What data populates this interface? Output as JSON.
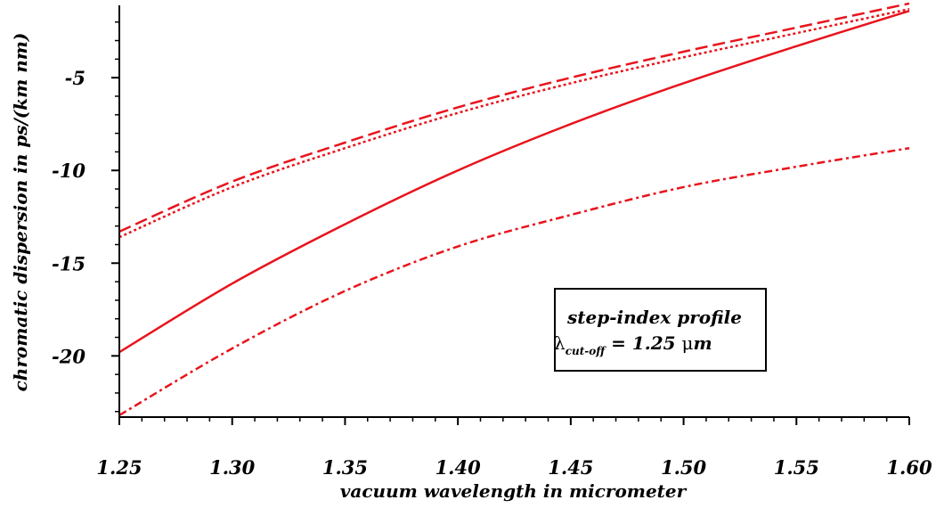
{
  "chart_data": {
    "type": "line",
    "xlabel": "vacuum wavelength in micrometer",
    "ylabel": "chromatic dispersion in ps/(km nm)",
    "xlim": [
      1.25,
      1.6
    ],
    "ylim": [
      -23.3,
      -1.1
    ],
    "x_ticks": [
      "1.25",
      "1.30",
      "1.35",
      "1.40",
      "1.45",
      "1.50",
      "1.55",
      "1.60"
    ],
    "y_ticks": [
      "-5",
      "-10",
      "-15",
      "-20"
    ],
    "grid": false,
    "line_color": "#e8141c",
    "x": [
      1.25,
      1.3,
      1.35,
      1.4,
      1.45,
      1.5,
      1.55,
      1.6
    ],
    "series": [
      {
        "style": "solid",
        "values": [
          -19.8,
          -16.1,
          -12.9,
          -10.0,
          -7.5,
          -5.3,
          -3.3,
          -1.4
        ]
      },
      {
        "style": "dashed",
        "values": [
          -13.3,
          -10.6,
          -8.5,
          -6.6,
          -5.0,
          -3.6,
          -2.3,
          -1.0
        ]
      },
      {
        "style": "dotted",
        "values": [
          -13.6,
          -10.9,
          -8.8,
          -6.9,
          -5.3,
          -3.9,
          -2.6,
          -1.3
        ]
      },
      {
        "style": "dash-dot",
        "values": [
          -23.2,
          -19.6,
          -16.5,
          -14.1,
          -12.4,
          -10.9,
          -9.8,
          -8.8
        ]
      }
    ],
    "annotation": {
      "line1": "step-index profile",
      "lambda": "λ",
      "sub": "cut-off",
      "value": " = 1.25 ",
      "unit_mu": "μ",
      "unit_m": "m"
    }
  }
}
